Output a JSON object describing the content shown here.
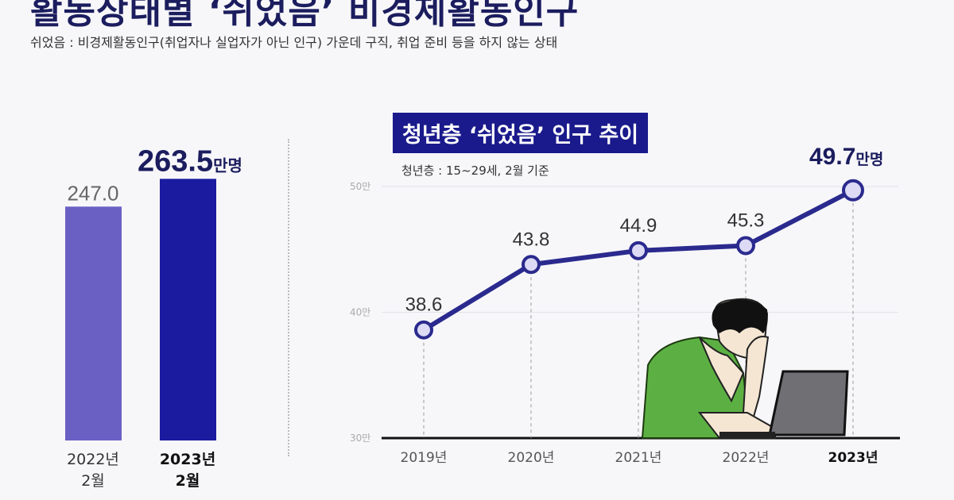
{
  "header": {
    "title": "활동상태별 ‘쉬었음’ 비경제활동인구",
    "subtitle": "쉬었음 : 비경제활동인구(취업자나 실업자가 아닌 인구) 가운데 구직, 취업 준비 등을 하지 않는 상태"
  },
  "chart_data": [
    {
      "type": "bar",
      "categories": [
        "2022년 2월",
        "2023년 2월"
      ],
      "category_lines": [
        [
          "2022년",
          "2월"
        ],
        [
          "2023년",
          "2월"
        ]
      ],
      "values": [
        247.0,
        263.5
      ],
      "value_labels": [
        "247.0",
        "263.5"
      ],
      "unit": "만명",
      "colors": [
        "#6a60c4",
        "#1b1ba0"
      ]
    },
    {
      "type": "line",
      "title": "청년층 ‘쉬었음’ 인구 추이",
      "note": "청년층 : 15~29세, 2월 기준",
      "categories": [
        "2019년",
        "2020년",
        "2021년",
        "2022년",
        "2023년"
      ],
      "values": [
        38.6,
        43.8,
        44.9,
        45.3,
        49.7
      ],
      "value_labels": [
        "38.6",
        "43.8",
        "44.9",
        "45.3",
        "49.7"
      ],
      "unit": "만명",
      "ylim": [
        30,
        50
      ],
      "yticks": [
        {
          "value": 30,
          "label": "30만"
        },
        {
          "value": 40,
          "label": "40만"
        },
        {
          "value": 50,
          "label": "50만"
        }
      ],
      "line_color": "#2a2a8e",
      "marker_fill": "#dcdaf5",
      "grid": true
    }
  ]
}
